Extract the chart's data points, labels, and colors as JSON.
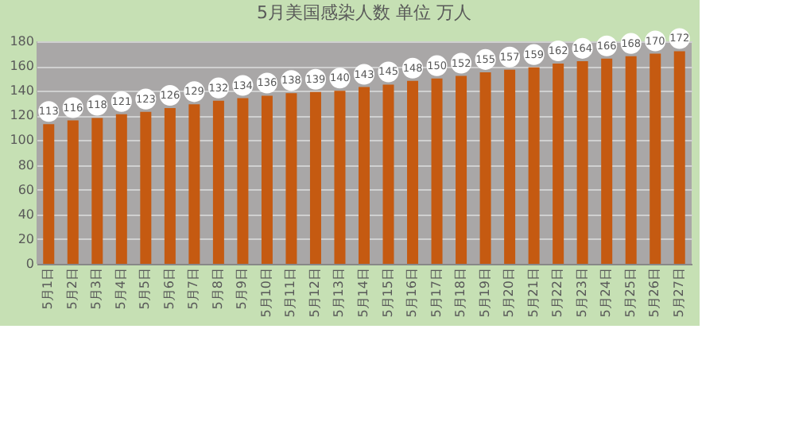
{
  "chart_data": {
    "type": "bar",
    "title": "5月美国感染人数 单位 万人",
    "categories": [
      "5月1日",
      "5月2日",
      "5月3日",
      "5月4日",
      "5月5日",
      "5月6日",
      "5月7日",
      "5月8日",
      "5月9日",
      "5月10日",
      "5月11日",
      "5月12日",
      "5月13日",
      "5月14日",
      "5月15日",
      "5月16日",
      "5月17日",
      "5月18日",
      "5月19日",
      "5月20日",
      "5月21日",
      "5月22日",
      "5月23日",
      "5月24日",
      "5月25日",
      "5月26日",
      "5月27日"
    ],
    "values": [
      113,
      116,
      118,
      121,
      123,
      126,
      129,
      132,
      134,
      136,
      138,
      139,
      140,
      143,
      145,
      148,
      150,
      152,
      155,
      157,
      159,
      162,
      164,
      166,
      168,
      170,
      172
    ],
    "color": "#c55a11",
    "ylim": [
      0,
      180
    ],
    "yticks": [
      0,
      20,
      40,
      60,
      80,
      100,
      120,
      140,
      160,
      180
    ],
    "grid": "y",
    "data_labels": true
  }
}
